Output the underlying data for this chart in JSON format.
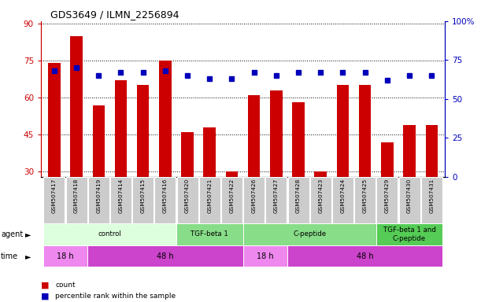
{
  "title": "GDS3649 / ILMN_2256894",
  "samples": [
    "GSM507417",
    "GSM507418",
    "GSM507419",
    "GSM507414",
    "GSM507415",
    "GSM507416",
    "GSM507420",
    "GSM507421",
    "GSM507422",
    "GSM507426",
    "GSM507427",
    "GSM507428",
    "GSM507423",
    "GSM507424",
    "GSM507425",
    "GSM507429",
    "GSM507430",
    "GSM507431"
  ],
  "counts": [
    74,
    85,
    57,
    67,
    65,
    75,
    46,
    48,
    30,
    61,
    63,
    58,
    30,
    65,
    65,
    42,
    49,
    49
  ],
  "percentile_ranks": [
    68,
    70,
    65,
    67,
    67,
    68,
    65,
    63,
    63,
    67,
    65,
    67,
    67,
    67,
    67,
    62,
    65,
    65
  ],
  "ylim_left": [
    28,
    91
  ],
  "ylim_right": [
    0,
    100
  ],
  "yticks_left": [
    30,
    45,
    60,
    75,
    90
  ],
  "yticks_right": [
    0,
    25,
    50,
    75,
    100
  ],
  "ytick_right_labels": [
    "0",
    "25",
    "50",
    "75",
    "100%"
  ],
  "bar_color": "#CC0000",
  "dot_color": "#0000BB",
  "grid_color": "#000000",
  "bg_color": "#FFFFFF",
  "tick_bg_color": "#CCCCCC",
  "agent_groups": [
    {
      "label": "control",
      "start": 0,
      "end": 6,
      "color": "#DDFFDD"
    },
    {
      "label": "TGF-beta 1",
      "start": 6,
      "end": 9,
      "color": "#88DD88"
    },
    {
      "label": "C-peptide",
      "start": 9,
      "end": 15,
      "color": "#88DD88"
    },
    {
      "label": "TGF-beta 1 and\nC-peptide",
      "start": 15,
      "end": 18,
      "color": "#55CC55"
    }
  ],
  "time_groups": [
    {
      "label": "18 h",
      "start": 0,
      "end": 2,
      "color": "#EE88EE"
    },
    {
      "label": "48 h",
      "start": 2,
      "end": 9,
      "color": "#CC44CC"
    },
    {
      "label": "18 h",
      "start": 9,
      "end": 11,
      "color": "#EE88EE"
    },
    {
      "label": "48 h",
      "start": 11,
      "end": 18,
      "color": "#CC44CC"
    }
  ],
  "left_axis_color": "#CC0000",
  "right_axis_color": "#0000BB",
  "fig_width": 6.11,
  "fig_height": 3.84,
  "dpi": 100
}
